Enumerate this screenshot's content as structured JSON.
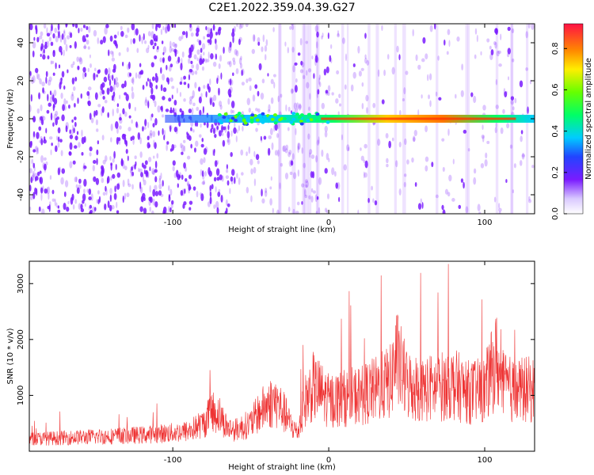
{
  "title": "C2E1.2022.359.04.39.G27",
  "colors": {
    "snr_line": "#ee3333",
    "axis": "#000000",
    "spectrogram_scatter": "#7a1bff"
  },
  "chart_data": [
    {
      "type": "heatmap",
      "title": "C2E1.2022.359.04.39.G27",
      "xlabel": "Height of straight line (km)",
      "ylabel": "Frequency (Hz)",
      "xlim": [
        -192,
        132
      ],
      "ylim": [
        -50,
        50
      ],
      "x_ticks": [
        -100,
        0,
        100
      ],
      "y_ticks": [
        -40,
        -20,
        0,
        20,
        40
      ],
      "colorbar": {
        "label": "Normalized spectral amplitude",
        "range": [
          0.0,
          0.92
        ],
        "ticks": [
          "0.0",
          "0.2",
          "0.4",
          "0.6",
          "0.8"
        ],
        "colormap": "rainbow"
      },
      "features": {
        "signal_band_frequency_hz": 0,
        "signal_band_start_km": -105,
        "peak_amplitude_region_km": [
          -5,
          120
        ],
        "noise_dominant_region_km": [
          -192,
          -60
        ]
      }
    },
    {
      "type": "line",
      "xlabel": "Height of straight line (km)",
      "ylabel": "SNR (10 * v/v)",
      "xlim": [
        -192,
        132
      ],
      "ylim": [
        0,
        3400
      ],
      "x_ticks": [
        -100,
        0,
        100
      ],
      "y_ticks": [
        1000,
        2000,
        3000
      ],
      "series": [
        {
          "x": [
            -192,
            -180,
            -160,
            -140,
            -120,
            -100,
            -90,
            -80,
            -75,
            -70,
            -65,
            -60,
            -50,
            -45,
            -40,
            -35,
            -30,
            -25,
            -20,
            -15,
            -10,
            -5,
            0,
            10,
            20,
            30,
            40,
            43,
            50,
            60,
            70,
            80,
            90,
            100,
            108,
            110,
            120,
            125,
            132
          ],
          "values": [
            220,
            230,
            250,
            270,
            290,
            330,
            360,
            500,
            720,
            650,
            420,
            380,
            500,
            680,
            820,
            900,
            760,
            500,
            330,
            900,
            1150,
            1050,
            900,
            950,
            1000,
            1100,
            1250,
            1700,
            1200,
            1100,
            1150,
            1200,
            1050,
            1100,
            1650,
            1200,
            1050,
            1100,
            1100
          ]
        }
      ]
    }
  ]
}
